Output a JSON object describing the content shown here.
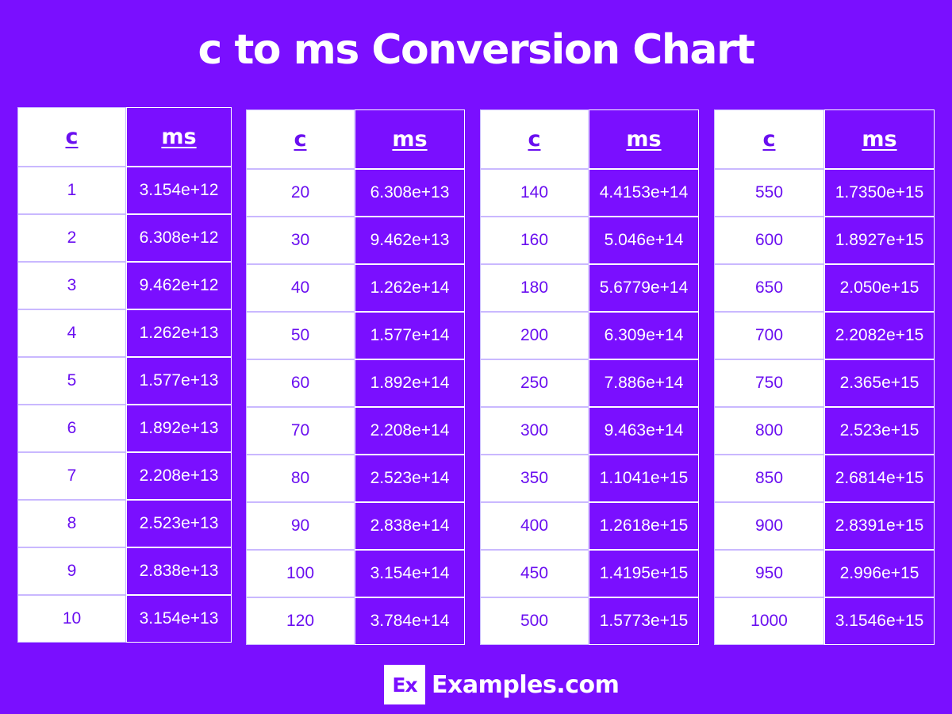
{
  "title": "c to ms Conversion Chart",
  "chart_data": {
    "type": "table",
    "title": "c to ms Conversion Chart",
    "tables": [
      {
        "headers": [
          "c",
          "ms"
        ],
        "rows": [
          [
            "1",
            "3.154e+12"
          ],
          [
            "2",
            "6.308e+12"
          ],
          [
            "3",
            "9.462e+12"
          ],
          [
            "4",
            "1.262e+13"
          ],
          [
            "5",
            "1.577e+13"
          ],
          [
            "6",
            "1.892e+13"
          ],
          [
            "7",
            "2.208e+13"
          ],
          [
            "8",
            "2.523e+13"
          ],
          [
            "9",
            "2.838e+13"
          ],
          [
            "10",
            "3.154e+13"
          ]
        ]
      },
      {
        "headers": [
          "c",
          "ms"
        ],
        "rows": [
          [
            "20",
            "6.308e+13"
          ],
          [
            "30",
            "9.462e+13"
          ],
          [
            "40",
            "1.262e+14"
          ],
          [
            "50",
            "1.577e+14"
          ],
          [
            "60",
            "1.892e+14"
          ],
          [
            "70",
            "2.208e+14"
          ],
          [
            "80",
            "2.523e+14"
          ],
          [
            "90",
            "2.838e+14"
          ],
          [
            "100",
            "3.154e+14"
          ],
          [
            "120",
            "3.784e+14"
          ]
        ]
      },
      {
        "headers": [
          "c",
          "ms"
        ],
        "rows": [
          [
            "140",
            "4.4153e+14"
          ],
          [
            "160",
            "5.046e+14"
          ],
          [
            "180",
            "5.6779e+14"
          ],
          [
            "200",
            "6.309e+14"
          ],
          [
            "250",
            "7.886e+14"
          ],
          [
            "300",
            "9.463e+14"
          ],
          [
            "350",
            "1.1041e+15"
          ],
          [
            "400",
            "1.2618e+15"
          ],
          [
            "450",
            "1.4195e+15"
          ],
          [
            "500",
            "1.5773e+15"
          ]
        ]
      },
      {
        "headers": [
          "c",
          "ms"
        ],
        "rows": [
          [
            "550",
            "1.7350e+15"
          ],
          [
            "600",
            "1.8927e+15"
          ],
          [
            "650",
            "2.050e+15"
          ],
          [
            "700",
            "2.2082e+15"
          ],
          [
            "750",
            "2.365e+15"
          ],
          [
            "800",
            "2.523e+15"
          ],
          [
            "850",
            "2.6814e+15"
          ],
          [
            "900",
            "2.8391e+15"
          ],
          [
            "950",
            "2.996e+15"
          ],
          [
            "1000",
            "3.1546e+15"
          ]
        ]
      }
    ]
  },
  "colors": {
    "background": "#7a0fff",
    "c_cell": "#ffffff",
    "c_text": "#6a0ff0",
    "ms_text": "#ffffff"
  },
  "footer": {
    "logo": "Ex",
    "brand": "Examples.com"
  }
}
